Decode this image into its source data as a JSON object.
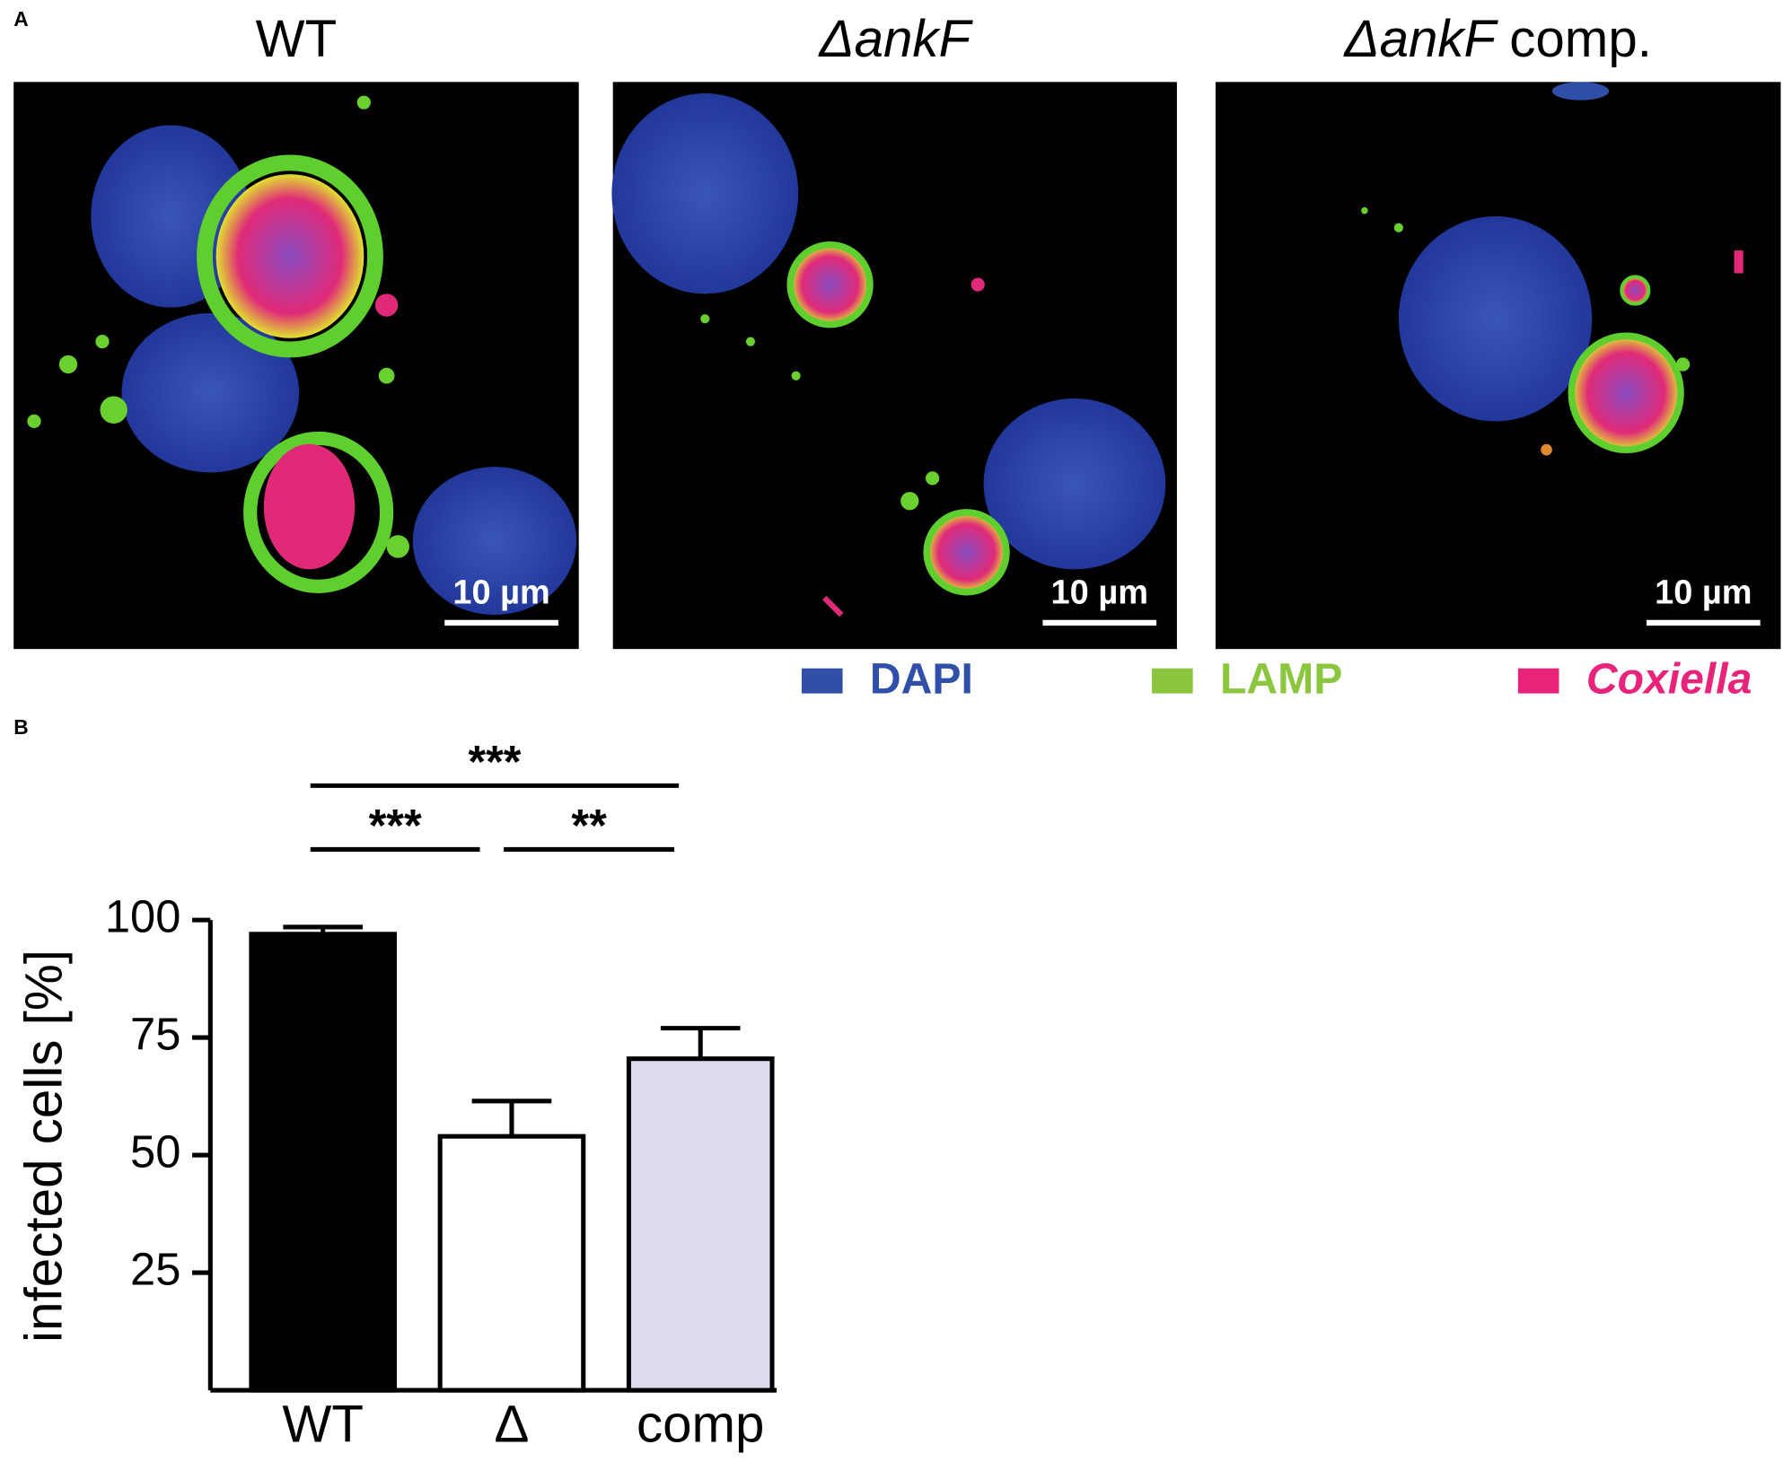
{
  "panel_labels": [
    "A",
    "B"
  ],
  "images": [
    {
      "title": "WT",
      "scale_bar": "10 µm"
    },
    {
      "title": "ΔankF",
      "scale_bar": "10 µm"
    },
    {
      "title": "ΔankF",
      "title_suffix": "comp.",
      "scale_bar": "10 µm"
    }
  ],
  "stain_legend": [
    {
      "name": "DAPI",
      "color": "#2f4fa8"
    },
    {
      "name": "LAMP",
      "color": "#8cc63f"
    },
    {
      "name": "Coxiella",
      "color": "#e8247a"
    }
  ],
  "chart_data": {
    "type": "bar",
    "ylabel": "infected cells [%]",
    "categories": [
      "WT",
      "Δ",
      "comp"
    ],
    "values": [
      97,
      54,
      70.5
    ],
    "errors": [
      1.5,
      7.5,
      6.5
    ],
    "colors": [
      "#000000",
      "#ffffff",
      "#dcdcee"
    ],
    "ylim": [
      0,
      100
    ],
    "yticks": [
      25,
      50,
      75,
      100
    ],
    "significance": [
      "***",
      "***",
      "**"
    ]
  }
}
